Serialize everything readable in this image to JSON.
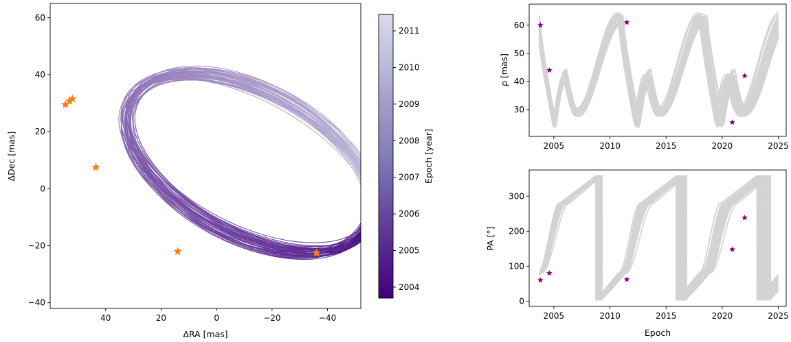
{
  "chart_data": [
    {
      "id": "orbit-plot",
      "type": "line",
      "xlabel": "ΔRA [mas]",
      "ylabel": "ΔDec [mas]",
      "xlim": [
        60,
        -52
      ],
      "ylim": [
        -42,
        65
      ],
      "x_ticks": [
        40,
        20,
        0,
        -20,
        -40
      ],
      "y_ticks": [
        -40,
        -20,
        0,
        20,
        40,
        60
      ],
      "x_tick_labels": [
        "40",
        "20",
        "0",
        "−20",
        "−40"
      ],
      "y_tick_labels": [
        "−40",
        "−20",
        "0",
        "20",
        "40",
        "60"
      ],
      "orbit_shape": {
        "center": [
          -12,
          9
        ],
        "semi_major": 48,
        "semi_minor": 25,
        "rotation_deg": 27,
        "n_orbits": 45
      },
      "colors": {
        "early": "#3f007d",
        "late": "#c3c0dd"
      },
      "markers": {
        "color": "#ff7f0e",
        "shape": "star",
        "points": [
          {
            "x": 54.5,
            "y": 29.5
          },
          {
            "x": 53.0,
            "y": 30.8
          },
          {
            "x": 52.0,
            "y": 31.5
          },
          {
            "x": 43.5,
            "y": 7.5
          },
          {
            "x": 14.0,
            "y": -22.0
          },
          {
            "x": -36.0,
            "y": -22.5
          }
        ]
      },
      "grid": false
    },
    {
      "id": "colorbar",
      "type": "heatmap",
      "label": "Epoch [year]",
      "range": [
        2003.7,
        2011.45
      ],
      "ticks": [
        2004,
        2005,
        2006,
        2007,
        2008,
        2009,
        2010,
        2011
      ],
      "tick_labels": [
        "2004",
        "2005",
        "2006",
        "2007",
        "2008",
        "2009",
        "2010",
        "2011"
      ],
      "colors": [
        "#3f007d",
        "#54278f",
        "#6a51a3",
        "#807dba",
        "#9e9ac8",
        "#bcbddc",
        "#dadaeb"
      ]
    },
    {
      "id": "separation-plot",
      "type": "line",
      "xlabel": "",
      "ylabel": "ρ [mas]",
      "xlim": [
        2002.8,
        2025.7
      ],
      "ylim": [
        20.5,
        67.5
      ],
      "x_ticks": [
        2005,
        2010,
        2015,
        2020,
        2025
      ],
      "y_ticks": [
        30,
        40,
        50,
        60
      ],
      "x_tick_labels": [
        "2005",
        "2010",
        "2015",
        "2020",
        "2025"
      ],
      "y_tick_labels": [
        "30",
        "40",
        "50",
        "60"
      ],
      "line_color": "#d3d3d3",
      "markers": {
        "color": "#800080",
        "shape": "star",
        "points": [
          {
            "x": 2003.8,
            "y": 60
          },
          {
            "x": 2004.6,
            "y": 44
          },
          {
            "x": 2011.5,
            "y": 61
          },
          {
            "x": 2020.9,
            "y": 25.5
          },
          {
            "x": 2022.0,
            "y": 42
          }
        ]
      }
    },
    {
      "id": "position-angle-plot",
      "type": "line",
      "xlabel": "Epoch",
      "ylabel": "PA [°]",
      "xlim": [
        2002.8,
        2025.7
      ],
      "ylim": [
        -15,
        375
      ],
      "x_ticks": [
        2005,
        2010,
        2015,
        2020,
        2025
      ],
      "y_ticks": [
        0,
        100,
        200,
        300
      ],
      "x_tick_labels": [
        "2005",
        "2010",
        "2015",
        "2020",
        "2025"
      ],
      "y_tick_labels": [
        "0",
        "100",
        "200",
        "300"
      ],
      "line_color": "#d3d3d3",
      "markers": {
        "color": "#800080",
        "shape": "star",
        "points": [
          {
            "x": 2003.8,
            "y": 60
          },
          {
            "x": 2004.6,
            "y": 80
          },
          {
            "x": 2011.5,
            "y": 62
          },
          {
            "x": 2020.9,
            "y": 148
          },
          {
            "x": 2022.0,
            "y": 238
          }
        ]
      }
    }
  ]
}
